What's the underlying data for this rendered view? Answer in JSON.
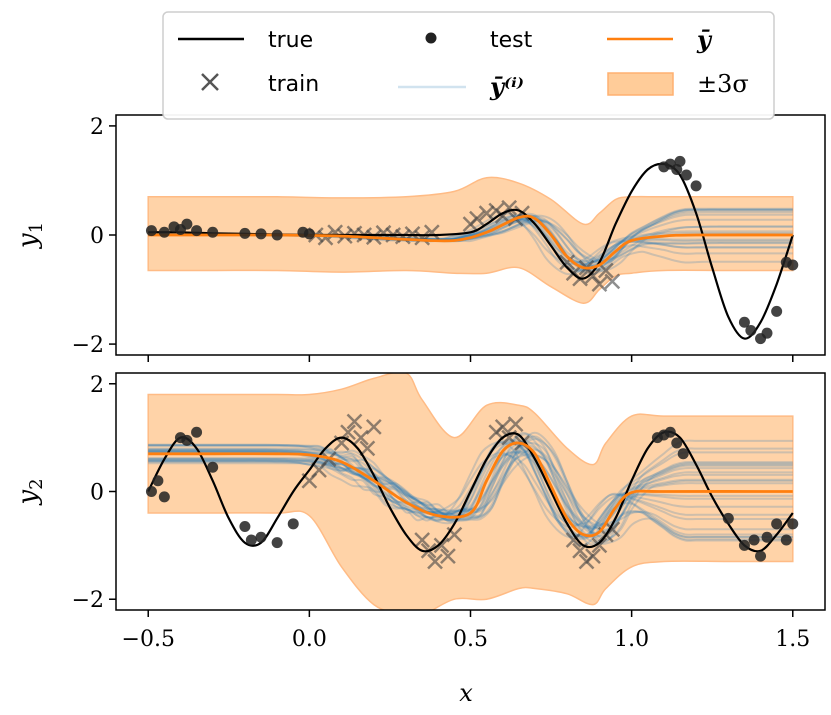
{
  "chart_data": {
    "type": "line",
    "xlabel": "x",
    "xlim": [
      -0.6,
      1.6
    ],
    "xticks": [
      "−0.5",
      "0.0",
      "0.5",
      "1.0",
      "1.5"
    ],
    "xtick_values": [
      -0.5,
      0.0,
      0.5,
      1.0,
      1.5
    ],
    "legend": {
      "position": "top-center",
      "entries": [
        {
          "key": "true",
          "label": "true",
          "style": "line",
          "color": "#000000"
        },
        {
          "key": "train",
          "label": "train",
          "style": "cross",
          "color": "#555555"
        },
        {
          "key": "test",
          "label": "test",
          "style": "dot",
          "color": "#222222"
        },
        {
          "key": "samples",
          "label": "ȳ⁽ⁱ⁾",
          "style": "line",
          "color": "#1f77b4"
        },
        {
          "key": "mean",
          "label": "ȳ",
          "style": "line",
          "color": "#ff7f0e"
        },
        {
          "key": "band",
          "label": "±3σ",
          "style": "patch",
          "color": "#ffcc99"
        }
      ]
    },
    "panels": [
      {
        "ylabel": "y1",
        "ylim": [
          -2.2,
          2.2
        ],
        "yticks": [
          "−2",
          "0",
          "2"
        ],
        "ytick_values": [
          -2,
          0,
          2
        ],
        "true_curve": {
          "x": [
            -0.5,
            -0.4,
            -0.3,
            -0.2,
            -0.1,
            0.0,
            0.1,
            0.2,
            0.3,
            0.4,
            0.5,
            0.55,
            0.6,
            0.65,
            0.7,
            0.75,
            0.8,
            0.85,
            0.9,
            0.95,
            1.0,
            1.05,
            1.1,
            1.15,
            1.2,
            1.25,
            1.3,
            1.35,
            1.4,
            1.45,
            1.5
          ],
          "y": [
            0.05,
            0.05,
            0.03,
            0.02,
            0.01,
            0,
            0,
            0,
            0,
            0,
            0.05,
            0.2,
            0.4,
            0.45,
            0.2,
            -0.2,
            -0.6,
            -0.8,
            -0.5,
            0.2,
            0.8,
            1.2,
            1.3,
            1.1,
            0.4,
            -0.6,
            -1.5,
            -1.9,
            -1.6,
            -0.9,
            0.0
          ]
        },
        "mean_curve": {
          "x": [
            -0.5,
            -0.3,
            -0.1,
            0.1,
            0.3,
            0.45,
            0.55,
            0.65,
            0.7,
            0.75,
            0.8,
            0.85,
            0.9,
            0.95,
            1.0,
            1.1,
            1.2,
            1.5
          ],
          "y": [
            0,
            0,
            0,
            -0.02,
            -0.08,
            -0.1,
            0.05,
            0.32,
            0.3,
            0.0,
            -0.4,
            -0.6,
            -0.55,
            -0.3,
            -0.1,
            -0.02,
            0,
            0
          ]
        },
        "band": {
          "x": [
            -0.5,
            -0.3,
            -0.1,
            0.1,
            0.3,
            0.45,
            0.55,
            0.65,
            0.75,
            0.85,
            0.9,
            0.95,
            1.0,
            1.1,
            1.3,
            1.5
          ],
          "upper": [
            0.7,
            0.7,
            0.7,
            0.68,
            0.7,
            0.8,
            1.05,
            0.95,
            0.65,
            0.2,
            0.4,
            0.65,
            0.7,
            0.7,
            0.7,
            0.7
          ],
          "lower": [
            -0.65,
            -0.65,
            -0.65,
            -0.68,
            -0.65,
            -0.7,
            -0.7,
            -0.6,
            -0.95,
            -1.25,
            -1.0,
            -0.75,
            -0.7,
            -0.65,
            -0.65,
            -0.65
          ]
        },
        "train_points": {
          "x": [
            0.02,
            0.05,
            0.08,
            0.11,
            0.14,
            0.17,
            0.2,
            0.23,
            0.26,
            0.29,
            0.32,
            0.35,
            0.38,
            0.5,
            0.52,
            0.55,
            0.58,
            0.6,
            0.62,
            0.64,
            0.66,
            0.8,
            0.82,
            0.84,
            0.86,
            0.88,
            0.9,
            0.92,
            0.94
          ],
          "y": [
            0.0,
            -0.05,
            0.05,
            -0.02,
            0.03,
            0.0,
            -0.04,
            0.04,
            0.0,
            -0.03,
            0.02,
            -0.05,
            0.05,
            0.2,
            0.3,
            0.4,
            0.45,
            0.35,
            0.5,
            0.3,
            0.4,
            -0.5,
            -0.7,
            -0.8,
            -0.6,
            -0.75,
            -0.9,
            -0.65,
            -0.85
          ]
        },
        "test_points": {
          "x": [
            -0.49,
            -0.45,
            -0.42,
            -0.4,
            -0.38,
            -0.35,
            -0.3,
            -0.2,
            -0.15,
            -0.1,
            -0.02,
            0.0,
            1.1,
            1.12,
            1.14,
            1.15,
            1.17,
            1.2,
            1.35,
            1.37,
            1.4,
            1.42,
            1.45,
            1.48,
            1.5
          ],
          "y": [
            0.08,
            0.05,
            0.15,
            0.1,
            0.2,
            0.08,
            0.05,
            0.03,
            0.02,
            0.0,
            0.05,
            0.02,
            1.25,
            1.3,
            1.2,
            1.35,
            1.1,
            0.9,
            -1.6,
            -1.75,
            -1.9,
            -1.8,
            -1.4,
            -0.5,
            -0.55
          ]
        },
        "num_samples": 20
      },
      {
        "ylabel": "y2",
        "ylim": [
          -2.2,
          2.2
        ],
        "yticks": [
          "−2",
          "0",
          "2"
        ],
        "ytick_values": [
          -2,
          0,
          2
        ],
        "true_curve": {
          "x": [
            -0.5,
            -0.45,
            -0.4,
            -0.35,
            -0.3,
            -0.25,
            -0.2,
            -0.15,
            -0.1,
            -0.05,
            0.0,
            0.05,
            0.1,
            0.15,
            0.2,
            0.25,
            0.3,
            0.35,
            0.4,
            0.45,
            0.5,
            0.55,
            0.6,
            0.65,
            0.7,
            0.75,
            0.8,
            0.85,
            0.9,
            0.95,
            1.0,
            1.05,
            1.1,
            1.15,
            1.2,
            1.25,
            1.3,
            1.35,
            1.4,
            1.45,
            1.5
          ],
          "y": [
            0.0,
            0.6,
            1.0,
            0.8,
            0.2,
            -0.5,
            -0.95,
            -0.95,
            -0.5,
            0.0,
            0.4,
            0.8,
            1.0,
            0.8,
            0.3,
            -0.3,
            -0.8,
            -1.1,
            -1.0,
            -0.6,
            0.0,
            0.6,
            1.0,
            1.05,
            0.6,
            0.0,
            -0.6,
            -1.0,
            -0.95,
            -0.5,
            0.2,
            0.8,
            1.1,
            1.0,
            0.5,
            -0.1,
            -0.6,
            -1.0,
            -1.1,
            -0.8,
            -0.4
          ]
        },
        "mean_curve": {
          "x": [
            -0.5,
            -0.3,
            -0.1,
            0.0,
            0.1,
            0.2,
            0.3,
            0.4,
            0.5,
            0.55,
            0.6,
            0.65,
            0.7,
            0.75,
            0.8,
            0.85,
            0.9,
            0.95,
            1.0,
            1.1,
            1.5
          ],
          "y": [
            0.7,
            0.7,
            0.7,
            0.68,
            0.55,
            0.2,
            -0.2,
            -0.45,
            -0.4,
            0.2,
            0.75,
            0.9,
            0.7,
            0.1,
            -0.5,
            -0.8,
            -0.75,
            -0.3,
            -0.02,
            0.0,
            0.0
          ]
        },
        "band": {
          "x": [
            -0.5,
            -0.3,
            -0.1,
            0.0,
            0.1,
            0.2,
            0.3,
            0.35,
            0.45,
            0.55,
            0.65,
            0.7,
            0.8,
            0.88,
            0.92,
            1.0,
            1.1,
            1.3,
            1.5
          ],
          "upper": [
            1.8,
            1.8,
            1.8,
            1.8,
            1.9,
            2.1,
            2.2,
            1.7,
            1.0,
            1.6,
            1.6,
            1.45,
            0.8,
            0.5,
            0.9,
            1.4,
            1.4,
            1.4,
            1.4
          ],
          "lower": [
            -0.4,
            -0.4,
            -0.4,
            -0.45,
            -1.4,
            -2.1,
            -2.3,
            -2.3,
            -2.0,
            -2.0,
            -1.8,
            -1.8,
            -1.9,
            -2.1,
            -1.8,
            -1.4,
            -1.3,
            -1.3,
            -1.3
          ]
        },
        "train_points": {
          "x": [
            0.0,
            0.03,
            0.06,
            0.1,
            0.12,
            0.14,
            0.16,
            0.18,
            0.2,
            0.35,
            0.37,
            0.39,
            0.41,
            0.43,
            0.45,
            0.58,
            0.6,
            0.62,
            0.64,
            0.66,
            0.82,
            0.84,
            0.86,
            0.88,
            0.9,
            0.92,
            0.94
          ],
          "y": [
            0.2,
            0.4,
            0.6,
            0.9,
            1.1,
            1.3,
            1.0,
            0.8,
            1.2,
            -0.9,
            -1.1,
            -1.3,
            -1.0,
            -1.2,
            -0.8,
            1.1,
            1.2,
            1.0,
            1.25,
            0.9,
            -0.9,
            -1.1,
            -1.3,
            -1.2,
            -1.0,
            -0.8,
            -0.7
          ]
        },
        "test_points": {
          "x": [
            -0.49,
            -0.47,
            -0.45,
            -0.4,
            -0.38,
            -0.35,
            -0.3,
            -0.2,
            -0.18,
            -0.15,
            -0.1,
            -0.05,
            1.08,
            1.1,
            1.12,
            1.14,
            1.16,
            1.3,
            1.35,
            1.38,
            1.4,
            1.42,
            1.45,
            1.48,
            1.5
          ],
          "y": [
            0.0,
            0.2,
            -0.1,
            1.0,
            0.95,
            1.1,
            0.45,
            -0.65,
            -0.9,
            -0.85,
            -0.95,
            -0.6,
            1.0,
            1.05,
            1.1,
            0.9,
            0.7,
            -0.5,
            -1.0,
            -0.9,
            -1.2,
            -0.85,
            -0.6,
            -0.9,
            -0.6
          ]
        },
        "num_samples": 24
      }
    ]
  }
}
